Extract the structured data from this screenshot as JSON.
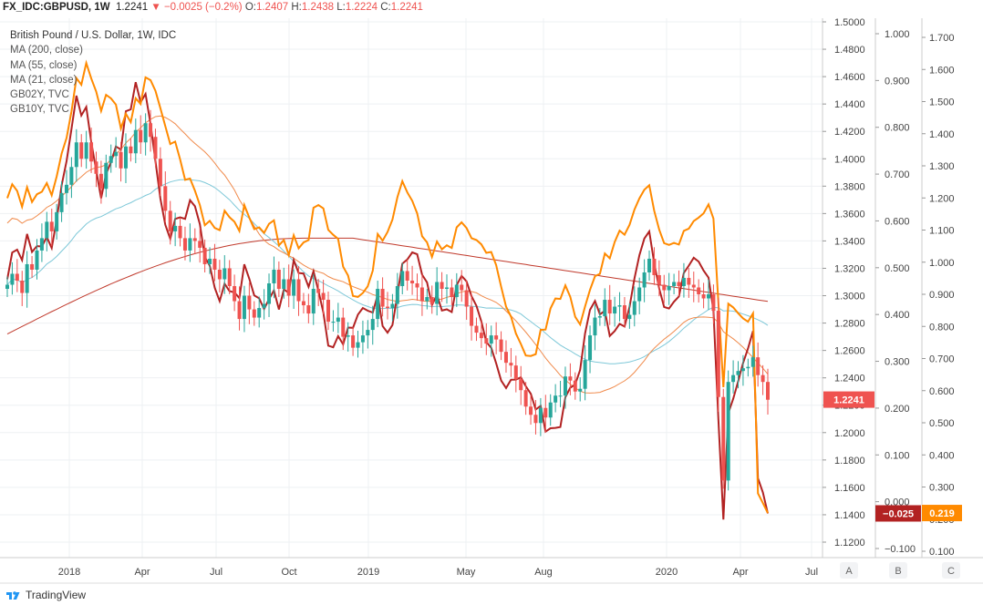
{
  "header": {
    "symbol": "FX_IDC:GBPUSD, 1W",
    "last": "1.2241",
    "change": "−0.0025 (−0.2%)",
    "o_label": "O:",
    "o": "1.2407",
    "h_label": "H:",
    "h": "1.2438",
    "l_label": "L:",
    "l": "1.2224",
    "c_label": "C:",
    "c": "1.2241"
  },
  "legend": {
    "title": "British Pound / U.S. Dollar, 1W, IDC",
    "items": [
      "MA (200, close)",
      "MA (55, close)",
      "MA (21, close)",
      "GB02Y, TVC",
      "GB10Y, TVC"
    ]
  },
  "footer": {
    "brand": "TradingView"
  },
  "colors": {
    "up": "#26a69a",
    "down": "#ef5350",
    "ma200": "#c0392b",
    "ma55": "#7ec8d8",
    "ma21": "#f08a4b",
    "gb02y": "#b22222",
    "gb10y": "#ff8a00",
    "grid": "#eef0f3",
    "axis_text": "#444"
  },
  "chart_data": {
    "type": "candlestick",
    "x_ticks": [
      "2018",
      "Apr",
      "Jul",
      "Oct",
      "2019",
      "May",
      "Aug",
      "2020",
      "Apr",
      "Jul"
    ],
    "price_axis": {
      "label": "A",
      "ticks": [
        "1.5000",
        "1.4800",
        "1.4600",
        "1.4400",
        "1.4200",
        "1.4000",
        "1.3800",
        "1.3600",
        "1.3400",
        "1.3200",
        "1.3000",
        "1.2800",
        "1.2600",
        "1.2400",
        "1.2200",
        "1.2000",
        "1.1800",
        "1.1600",
        "1.1400",
        "1.1200"
      ],
      "ylim": [
        1.1095,
        1.5015
      ],
      "last_value_label": "1.2241"
    },
    "gb02y_axis": {
      "label": "B",
      "ticks": [
        "1.000",
        "0.900",
        "0.800",
        "0.700",
        "0.600",
        "0.500",
        "0.400",
        "0.300",
        "0.200",
        "0.100",
        "0.000",
        "−0.100"
      ],
      "ylim": [
        -0.15,
        1.04
      ],
      "last_value_label": "−0.025"
    },
    "gb10y_axis": {
      "label": "C",
      "ticks": [
        "1.700",
        "1.600",
        "1.500",
        "1.400",
        "1.300",
        "1.200",
        "1.100",
        "1.000",
        "0.900",
        "0.800",
        "0.700",
        "0.600",
        "0.500",
        "0.400",
        "0.300",
        "0.200",
        "0.100"
      ],
      "ylim": [
        0.07,
        1.745
      ],
      "last_value_label": "0.219"
    },
    "close": [
      1.308,
      1.316,
      1.311,
      1.302,
      1.323,
      1.319,
      1.333,
      1.342,
      1.354,
      1.347,
      1.361,
      1.375,
      1.381,
      1.394,
      1.412,
      1.4,
      1.412,
      1.398,
      1.389,
      1.378,
      1.397,
      1.402,
      1.405,
      1.393,
      1.409,
      1.404,
      1.421,
      1.412,
      1.426,
      1.416,
      1.4,
      1.38,
      1.362,
      1.347,
      1.351,
      1.342,
      1.333,
      1.342,
      1.34,
      1.335,
      1.323,
      1.327,
      1.319,
      1.312,
      1.32,
      1.307,
      1.296,
      1.283,
      1.3,
      1.29,
      1.284,
      1.291,
      1.294,
      1.309,
      1.319,
      1.305,
      1.312,
      1.3,
      1.312,
      1.296,
      1.293,
      1.287,
      1.305,
      1.302,
      1.297,
      1.281,
      1.281,
      1.284,
      1.27,
      1.271,
      1.262,
      1.266,
      1.271,
      1.275,
      1.283,
      1.305,
      1.292,
      1.291,
      1.294,
      1.307,
      1.318,
      1.311,
      1.309,
      1.306,
      1.296,
      1.299,
      1.294,
      1.31,
      1.305,
      1.306,
      1.299,
      1.308,
      1.304,
      1.292,
      1.278,
      1.273,
      1.269,
      1.265,
      1.271,
      1.268,
      1.259,
      1.251,
      1.249,
      1.239,
      1.231,
      1.219,
      1.213,
      1.207,
      1.218,
      1.211,
      1.222,
      1.227,
      1.227,
      1.241,
      1.238,
      1.23,
      1.232,
      1.253,
      1.271,
      1.284,
      1.285,
      1.297,
      1.287,
      1.292,
      1.293,
      1.283,
      1.286,
      1.296,
      1.306,
      1.317,
      1.327,
      1.315,
      1.308,
      1.304,
      1.307,
      1.31,
      1.307,
      1.313,
      1.308,
      1.306,
      1.301,
      1.298,
      1.301,
      1.289,
      1.226,
      1.165,
      1.237,
      1.242,
      1.245,
      1.247,
      1.248,
      1.255,
      1.242,
      1.237,
      1.224
    ],
    "open_first": 1.305
  }
}
